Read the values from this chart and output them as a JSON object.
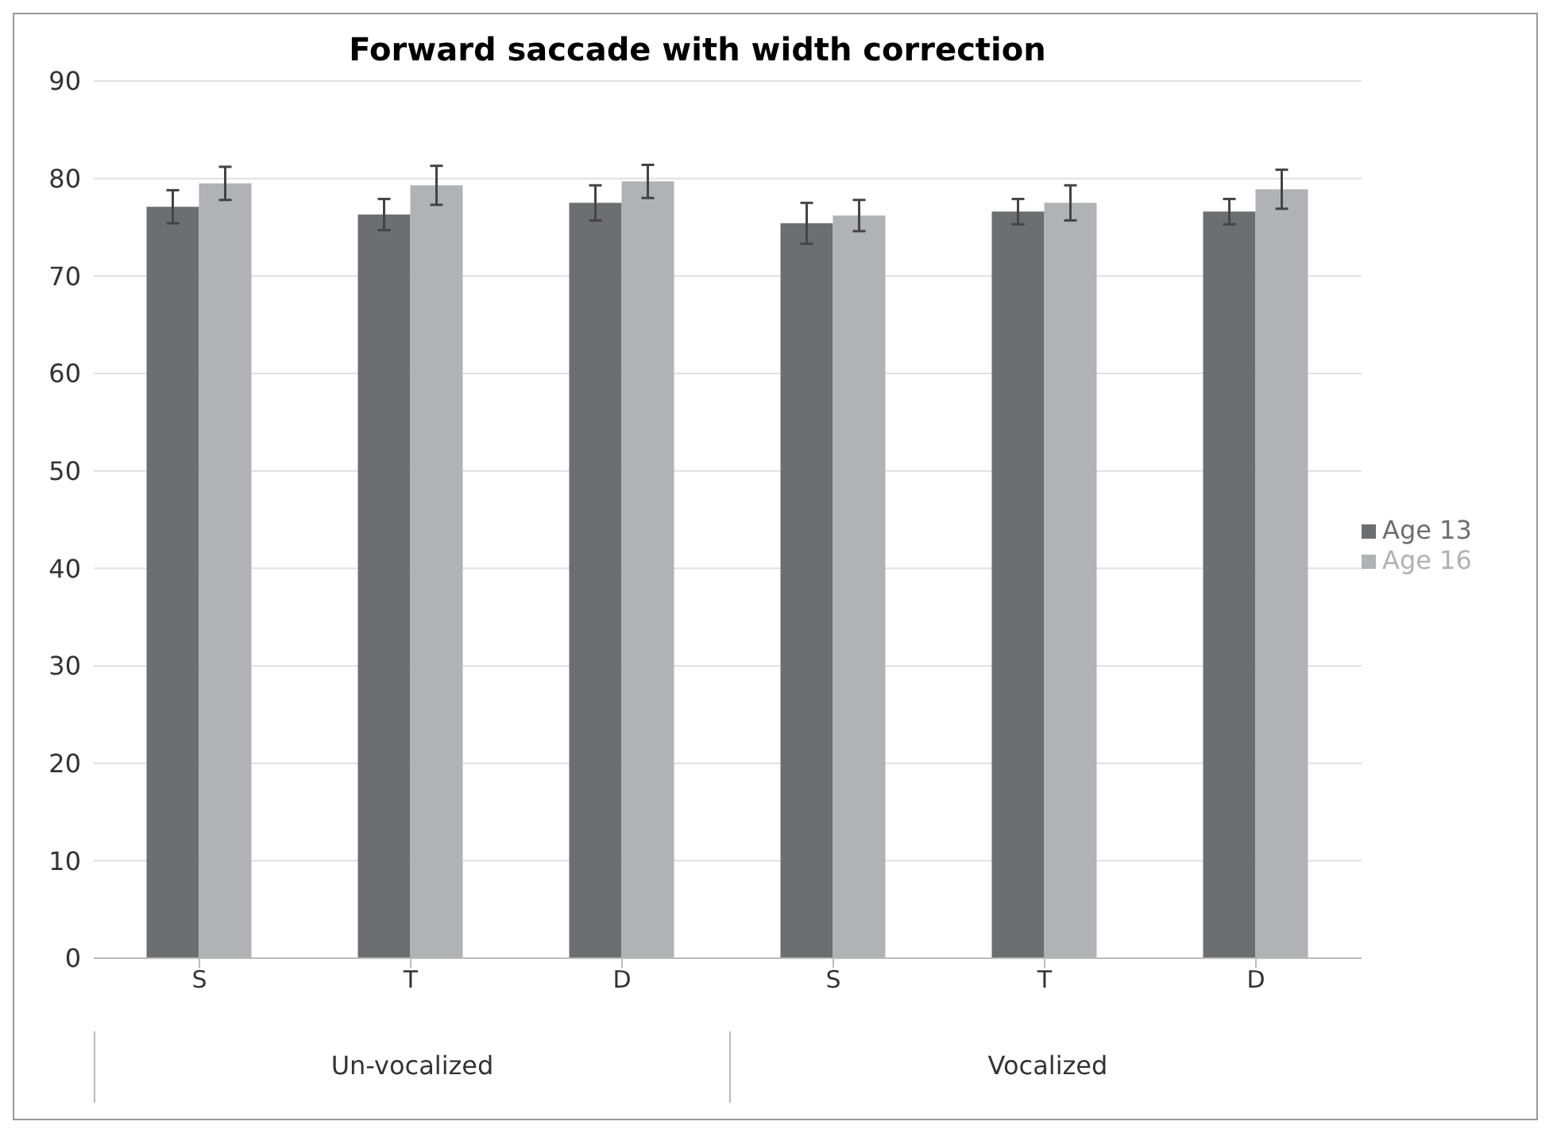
{
  "chart_data": {
    "type": "bar",
    "title": "Forward saccade with width correction",
    "categories": [
      "S",
      "T",
      "D",
      "S",
      "T",
      "D"
    ],
    "series": [
      {
        "name": "Age 13",
        "color": "#6d6e71",
        "values": [
          77.1,
          76.3,
          77.5,
          75.4,
          76.6,
          76.6
        ],
        "errors": [
          1.7,
          1.6,
          1.8,
          2.1,
          1.3,
          1.3
        ]
      },
      {
        "name": "Age 16",
        "color": "#b1b2b5",
        "values": [
          79.5,
          79.3,
          79.7,
          76.2,
          77.5,
          78.9
        ],
        "errors": [
          1.7,
          2,
          1.7,
          1.6,
          1.8,
          2
        ]
      }
    ],
    "annotations": [
      "Un-vocalized",
      "Vocalized"
    ],
    "ylim": [
      0,
      90
    ],
    "yticks": [
      0,
      10,
      20,
      30,
      40,
      50,
      60,
      70,
      80,
      90
    ],
    "grid": "y",
    "legend": "right"
  }
}
